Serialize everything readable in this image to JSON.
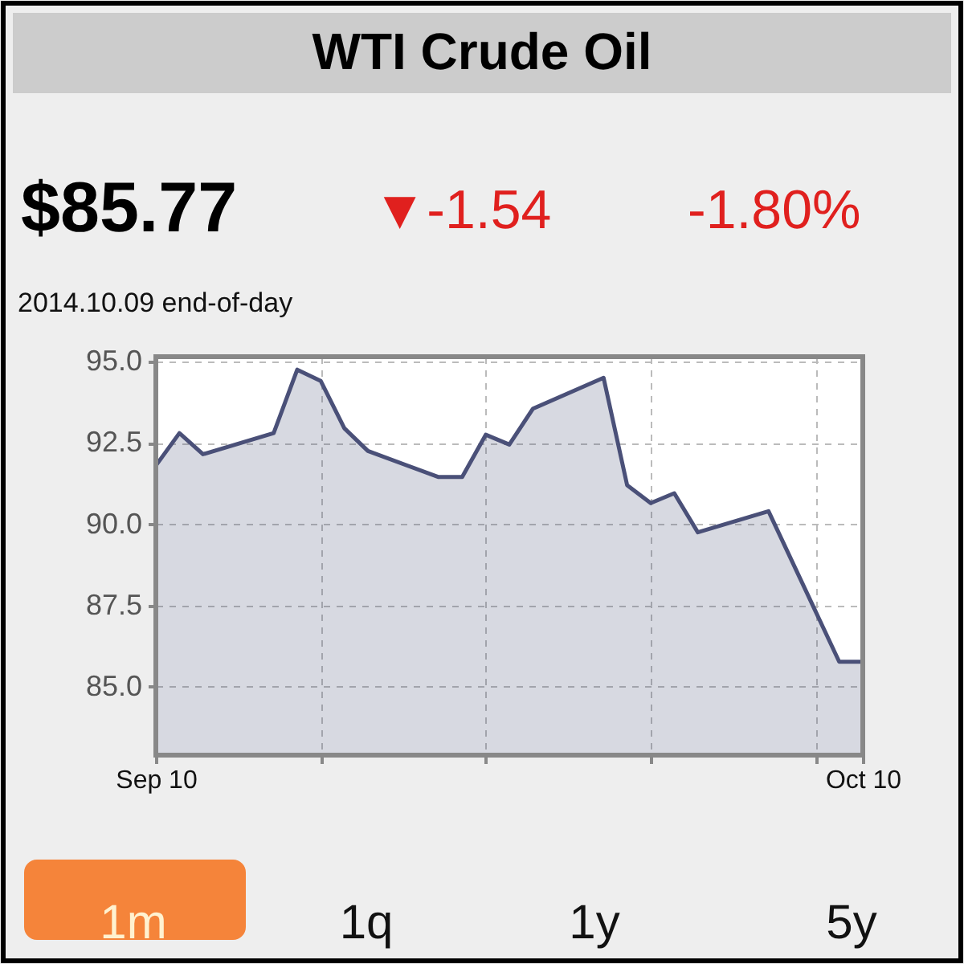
{
  "chart_data": {
    "type": "area",
    "title": "WTI Crude Oil",
    "annotations": [
      "$85.77",
      "▼-1.54",
      "-1.80%",
      "2014.10.09 end-of-day",
      "1m",
      "1q",
      "1y",
      "5y"
    ],
    "x": [
      "2014-09-10",
      "2014-09-11",
      "2014-09-12",
      "2014-09-15",
      "2014-09-16",
      "2014-09-17",
      "2014-09-18",
      "2014-09-19",
      "2014-09-22",
      "2014-09-23",
      "2014-09-24",
      "2014-09-25",
      "2014-09-26",
      "2014-09-29",
      "2014-09-30",
      "2014-10-01",
      "2014-10-02",
      "2014-10-03",
      "2014-10-06",
      "2014-10-09",
      "2014-10-10"
    ],
    "series": [
      {
        "color": "#4a5078",
        "values": [
          91.8,
          92.8,
          92.15,
          92.8,
          94.75,
          94.4,
          92.95,
          92.25,
          91.45,
          91.45,
          92.75,
          92.45,
          93.55,
          94.5,
          91.2,
          90.65,
          90.95,
          89.75,
          90.4,
          85.77,
          85.77
        ]
      }
    ],
    "xlim": [
      "2014-09-10",
      "2014-10-10"
    ],
    "xticks": [
      {
        "value": "2014-09-10",
        "label": "Sep 10"
      },
      {
        "value": "2014-09-17",
        "label": null
      },
      {
        "value": "2014-09-24",
        "label": null
      },
      {
        "value": "2014-10-01",
        "label": null
      },
      {
        "value": "2014-10-08",
        "label": null
      },
      {
        "value": "2014-10-10",
        "label": "Oct 10"
      }
    ],
    "ylim": [
      82.9,
      95.15
    ],
    "yticks": [
      {
        "value": 85,
        "label": "85.0"
      },
      {
        "value": 87.5,
        "label": "87.5"
      },
      {
        "value": 90,
        "label": "90.0"
      },
      {
        "value": 92.5,
        "label": "92.5"
      },
      {
        "value": 95,
        "label": "95.0"
      }
    ],
    "grid": true
  }
}
